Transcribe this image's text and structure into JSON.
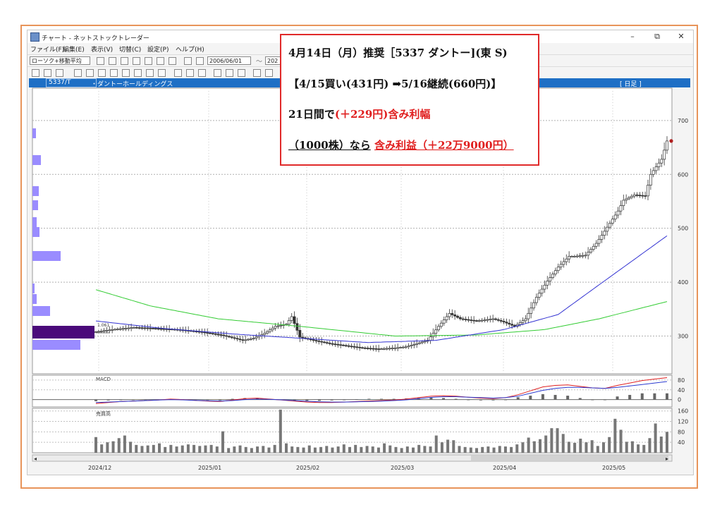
{
  "window": {
    "title": "チャート - ネットストックトレーダー",
    "minimize": "–",
    "restore": "⧉",
    "close": "✕"
  },
  "menu": [
    "ファイル(F)",
    "編集(E)",
    "表示(V)",
    "切替(C)",
    "設定(P)",
    "ヘルプ(H)"
  ],
  "toolbar": {
    "chart_type_select": "ローソク+移動平均",
    "date_from": "2006/06/01",
    "date_sep": "～",
    "date_to": "202"
  },
  "symbol_bar": {
    "code": "5337/T",
    "name": "・ダントーホールディングス",
    "period": "[ 日足 ]"
  },
  "price_axis": {
    "labels": [
      "700",
      "600",
      "500",
      "400",
      "300"
    ],
    "min": 230,
    "max": 760
  },
  "macd_panel": {
    "label": "MACD",
    "axis": [
      "80",
      "40",
      "0"
    ]
  },
  "volume_panel": {
    "label": "売買高",
    "axis": [
      "160",
      "120",
      "80",
      "40"
    ]
  },
  "date_axis": [
    "2024/12",
    "2025/01",
    "2025/02",
    "2025/03",
    "2025/04",
    "2025/05"
  ],
  "price_marker": "1.061",
  "scroll": {
    "left": "◂",
    "right": "▸"
  },
  "callout": {
    "line1": "4月14日（月）推奨［5337 ダントー](東 S)",
    "line2": "【4/15買い(431円) ➡5/16継続(660円)】",
    "line3a": "21日間で",
    "line3b": "(＋229円)含み利幅",
    "line4a": "（1000株）なら",
    "line4b": "含み利益（＋22万9000円）"
  },
  "colors": {
    "ma_short": "#3232d2",
    "ma_long": "#33cc33",
    "volume_profile": "#9a8cff",
    "volume_profile_peak": "#4a0a7a",
    "callout_border": "#e02a2a",
    "callout_red": "#e01f1f",
    "callout_blue": "#1a6fc0",
    "infobar": "#1e6fc5"
  },
  "chart_data": {
    "type": "candlestick",
    "dates_shown": [
      "2024/12",
      "2025/01",
      "2025/02",
      "2025/03",
      "2025/04",
      "2025/05"
    ],
    "ylim": [
      230,
      760
    ],
    "close_path_keypoints": [
      [
        0,
        308
      ],
      [
        6,
        312
      ],
      [
        14,
        316
      ],
      [
        22,
        314
      ],
      [
        30,
        312
      ],
      [
        38,
        308
      ],
      [
        46,
        302
      ],
      [
        54,
        292
      ],
      [
        58,
        296
      ],
      [
        62,
        305
      ],
      [
        66,
        318
      ],
      [
        70,
        322
      ],
      [
        72,
        336
      ],
      [
        75,
        298
      ],
      [
        80,
        292
      ],
      [
        86,
        286
      ],
      [
        92,
        282
      ],
      [
        98,
        278
      ],
      [
        104,
        276
      ],
      [
        110,
        278
      ],
      [
        114,
        280
      ],
      [
        118,
        286
      ],
      [
        122,
        292
      ],
      [
        126,
        318
      ],
      [
        130,
        342
      ],
      [
        134,
        332
      ],
      [
        140,
        328
      ],
      [
        146,
        332
      ],
      [
        150,
        326
      ],
      [
        154,
        318
      ],
      [
        158,
        332
      ],
      [
        162,
        372
      ],
      [
        166,
        402
      ],
      [
        170,
        428
      ],
      [
        172,
        438
      ],
      [
        174,
        448
      ],
      [
        176,
        448
      ],
      [
        180,
        450
      ],
      [
        184,
        472
      ],
      [
        188,
        502
      ],
      [
        192,
        532
      ],
      [
        194,
        552
      ],
      [
        198,
        562
      ],
      [
        202,
        560
      ],
      [
        204,
        600
      ],
      [
        208,
        628
      ],
      [
        210,
        662
      ]
    ],
    "ma_short_keypoints": [
      [
        0,
        328
      ],
      [
        25,
        314
      ],
      [
        50,
        304
      ],
      [
        75,
        296
      ],
      [
        100,
        288
      ],
      [
        125,
        292
      ],
      [
        150,
        312
      ],
      [
        170,
        340
      ],
      [
        185,
        395
      ],
      [
        210,
        486
      ]
    ],
    "ma_long_keypoints": [
      [
        0,
        386
      ],
      [
        20,
        356
      ],
      [
        45,
        332
      ],
      [
        75,
        318
      ],
      [
        110,
        300
      ],
      [
        140,
        302
      ],
      [
        165,
        312
      ],
      [
        185,
        332
      ],
      [
        210,
        364
      ]
    ],
    "volume": [
      60,
      32,
      40,
      44,
      56,
      66,
      42,
      30,
      26,
      28,
      30,
      36,
      22,
      30,
      24,
      28,
      32,
      30,
      26,
      28,
      30,
      24,
      82,
      18,
      24,
      28,
      22,
      18,
      24,
      26,
      20,
      30,
      165,
      36,
      24,
      22,
      20,
      28,
      20,
      22,
      26,
      20,
      24,
      32,
      22,
      30,
      22,
      26,
      24,
      20,
      36,
      28,
      22,
      18,
      24,
      20,
      30,
      26,
      24,
      66,
      40,
      50,
      48,
      26,
      22,
      20,
      18,
      22,
      24,
      20,
      26,
      24,
      22,
      32,
      40,
      58,
      44,
      52,
      66,
      94,
      94,
      72,
      42,
      38,
      54,
      40,
      48,
      26,
      40,
      60,
      130,
      88,
      42,
      44,
      32,
      30,
      56,
      112,
      62,
      80
    ],
    "macd": [
      -16,
      -12,
      -8,
      -6,
      -4,
      -2,
      2,
      0,
      -3,
      -6,
      -8,
      -2,
      4,
      6,
      2,
      -2,
      -6,
      -10,
      -12,
      -12,
      -10,
      -8,
      -6,
      -4,
      -2,
      2,
      8,
      14,
      16,
      14,
      10,
      6,
      4,
      8,
      20,
      36,
      52,
      58,
      60,
      54,
      48,
      46,
      58,
      68,
      78,
      84,
      90
    ],
    "macd_signal": [
      -12,
      -10,
      -8,
      -6,
      -4,
      -2,
      0,
      -1,
      -3,
      -5,
      -6,
      -4,
      0,
      2,
      1,
      -1,
      -4,
      -7,
      -9,
      -10,
      -10,
      -9,
      -8,
      -6,
      -4,
      -1,
      4,
      9,
      12,
      12,
      10,
      8,
      6,
      8,
      14,
      26,
      38,
      46,
      50,
      50,
      48,
      46,
      50,
      56,
      62,
      68,
      74
    ]
  }
}
